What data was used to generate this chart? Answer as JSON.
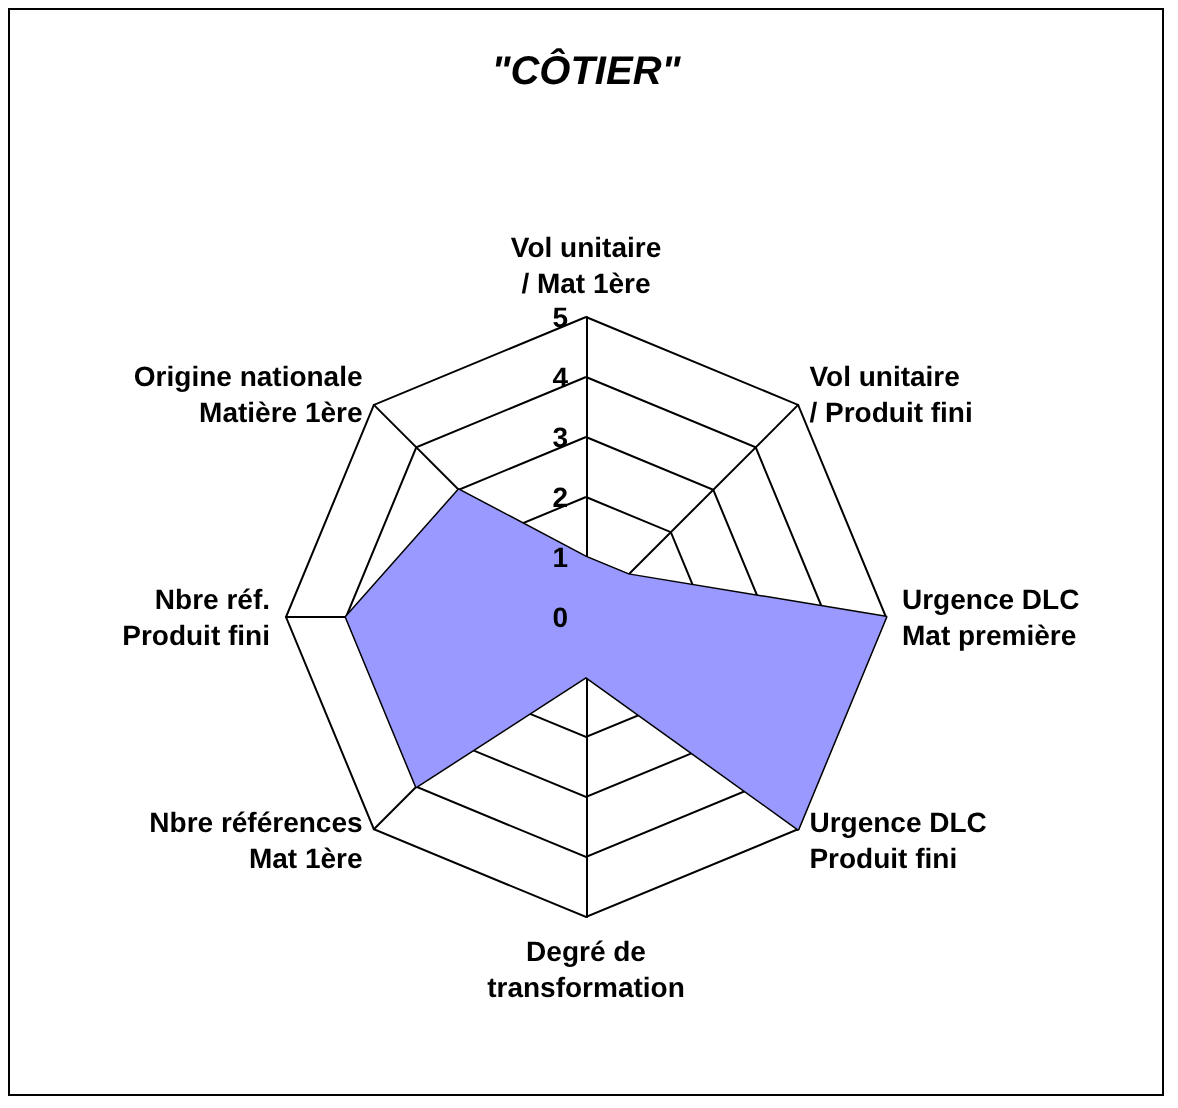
{
  "chart_data": {
    "type": "radar",
    "title": "\"CÔTIER\"",
    "categories": [
      "Vol unitaire\n/ Mat 1ère",
      "Vol unitaire\n/ Produit fini",
      "Urgence DLC\nMat première",
      "Urgence DLC\nProduit fini",
      "Degré de\ntransformation",
      "Nbre références\nMat 1ère",
      "Nbre réf.\nProduit fini",
      "Origine nationale\nMatière 1ère"
    ],
    "series": [
      {
        "color": "#9999ff",
        "values": [
          1,
          1,
          5,
          5,
          1,
          4,
          4,
          3
        ]
      }
    ],
    "ylim": [
      0,
      5
    ],
    "yticks": [
      0,
      1,
      2,
      3,
      4,
      5
    ],
    "grid": true
  }
}
